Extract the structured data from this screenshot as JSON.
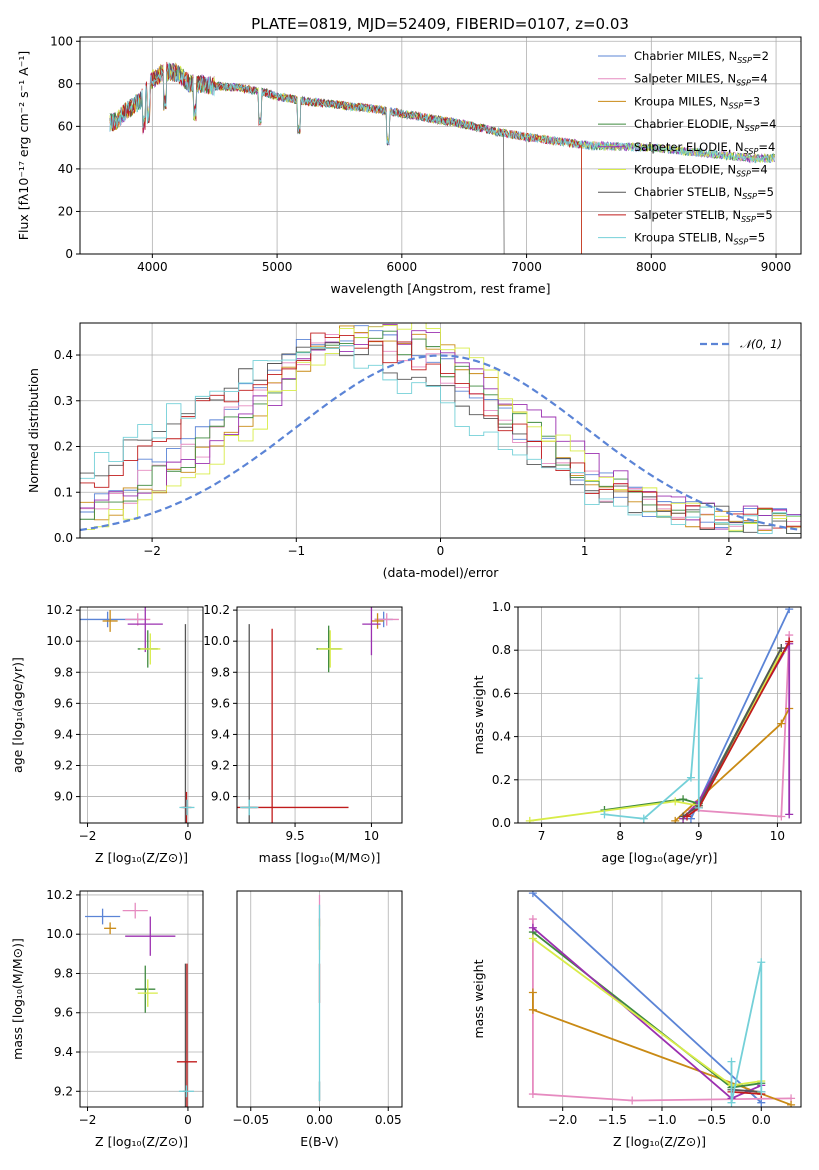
{
  "title": "PLATE=0819, MJD=52409, FIBERID=0107, z=0.03",
  "series_colors": {
    "Chabrier MILES": "#5b84d6",
    "Salpeter MILES": "#e68bc0",
    "Kroupa MILES": "#c98a14",
    "Chabrier ELODIE": "#3f8a3f",
    "Salpeter ELODIE": "#9b30b0",
    "Kroupa ELODIE": "#d8ec48",
    "Chabrier STELIB": "#555555",
    "Salpeter STELIB": "#c01c1c",
    "Kroupa STELIB": "#74d0d8"
  },
  "chart_data": [
    {
      "type": "line",
      "xlabel": "wavelength [Angstrom, rest frame]",
      "ylabel": "Flux [fλ10⁻¹⁷ erg cm⁻² s⁻¹ A⁻¹]",
      "xlim": [
        3420,
        9200
      ],
      "ylim": [
        0,
        102
      ],
      "xticks": [
        4000,
        5000,
        6000,
        7000,
        8000,
        9000
      ],
      "yticks": [
        0,
        20,
        40,
        60,
        80,
        100
      ],
      "legend_position": "top-right",
      "legend": [
        "Chabrier MILES, N_SSP=2",
        "Salpeter MILES, N_SSP=4",
        "Kroupa MILES, N_SSP=3",
        "Chabrier ELODIE, N_SSP=4",
        "Salpeter ELODIE, N_SSP=4",
        "Kroupa ELODIE, N_SSP=4",
        "Chabrier STELIB, N_SSP=5",
        "Salpeter STELIB, N_SSP=5",
        "Kroupa STELIB, N_SSP=5"
      ],
      "legend_labels": [
        {
          "name": "Chabrier MILES, N",
          "n": "2"
        },
        {
          "name": "Salpeter MILES, N",
          "n": "4"
        },
        {
          "name": "Kroupa MILES, N",
          "n": "3"
        },
        {
          "name": "Chabrier ELODIE, N",
          "n": "4"
        },
        {
          "name": "Salpeter ELODIE, N",
          "n": "4"
        },
        {
          "name": "Kroupa ELODIE, N",
          "n": "4"
        },
        {
          "name": "Chabrier STELIB, N",
          "n": "5"
        },
        {
          "name": "Salpeter STELIB, N",
          "n": "5"
        },
        {
          "name": "Kroupa STELIB, N",
          "n": "5"
        }
      ],
      "continuum": [
        [
          3700,
          62
        ],
        [
          3800,
          68
        ],
        [
          3900,
          72
        ],
        [
          4000,
          82
        ],
        [
          4100,
          86
        ],
        [
          4200,
          85
        ],
        [
          4300,
          80
        ],
        [
          4400,
          80
        ],
        [
          4500,
          79
        ],
        [
          4700,
          78
        ],
        [
          4900,
          76
        ],
        [
          5000,
          74
        ],
        [
          5200,
          72
        ],
        [
          5500,
          70
        ],
        [
          5800,
          68
        ],
        [
          6000,
          66
        ],
        [
          6300,
          63
        ],
        [
          6500,
          61
        ],
        [
          6800,
          57
        ],
        [
          7000,
          55
        ],
        [
          7500,
          51
        ],
        [
          8000,
          50
        ],
        [
          8500,
          47
        ],
        [
          8800,
          45
        ],
        [
          8900,
          45
        ]
      ],
      "series_spans": [
        [
          3660,
          8990
        ],
        [
          3660,
          8990
        ],
        [
          3660,
          7440
        ],
        [
          3660,
          8990
        ],
        [
          3660,
          8990
        ],
        [
          3660,
          8990
        ],
        [
          3660,
          6820
        ],
        [
          3660,
          7440
        ],
        [
          3660,
          8990
        ]
      ]
    },
    {
      "type": "histogram",
      "xlabel": "(data-model)/error",
      "ylabel": "Normed distribution",
      "xlim": [
        -2.5,
        2.5
      ],
      "ylim": [
        0,
        0.47
      ],
      "xticks": [
        -2,
        -1,
        0,
        1,
        2
      ],
      "yticks": [
        0.0,
        0.1,
        0.2,
        0.3,
        0.4
      ],
      "legend_position": "top-right",
      "reference_curve": {
        "name": "𝒩(0, 1)",
        "mean": 0,
        "sigma": 1,
        "style": "dashed"
      },
      "bin_width": 0.1,
      "bin_start": -2.5,
      "mean_offsets": [
        -0.55,
        -0.5,
        -0.4,
        -0.45,
        -0.35,
        -0.3,
        -0.75,
        -0.65,
        -0.85
      ],
      "spreads": [
        0.95,
        0.9,
        0.85,
        0.9,
        0.92,
        0.85,
        1.05,
        1.0,
        1.05
      ],
      "peaks": [
        0.42,
        0.4,
        0.43,
        0.41,
        0.42,
        0.44,
        0.38,
        0.4,
        0.37
      ]
    },
    {
      "type": "scatter",
      "xlabel": "Z [log₁₀(Z/Z⊙)]",
      "ylabel": "age  [log₁₀(age/yr)]",
      "xlim": [
        -2.15,
        0.3
      ],
      "ylim": [
        8.83,
        10.22
      ],
      "xticks": [
        -2,
        0
      ],
      "yticks": [
        9.0,
        9.2,
        9.4,
        9.6,
        9.8,
        10.0,
        10.2
      ],
      "points": [
        {
          "x": -1.6,
          "y": 10.14,
          "xerr": 0.7,
          "yerr": 0.05
        },
        {
          "x": -1.0,
          "y": 10.14,
          "xerr": 0.25,
          "yerr": 0.04
        },
        {
          "x": -1.55,
          "y": 10.13,
          "xerr": 0.15,
          "yerr": 0.07
        },
        {
          "x": -0.8,
          "y": 9.95,
          "xerr": 0.2,
          "yerr": 0.12
        },
        {
          "x": -0.85,
          "y": 10.11,
          "xerr": 0.35,
          "yerr": 0.18
        },
        {
          "x": -0.75,
          "y": 9.95,
          "xerr": 0.2,
          "yerr": 0.1
        },
        {
          "x": -0.05,
          "y": 8.93,
          "xerr": 0.05,
          "yerr": 1.18
        },
        {
          "x": -0.03,
          "y": 8.93,
          "xerr": 0.1,
          "yerr": 0.1
        },
        {
          "x": -0.02,
          "y": 8.93,
          "xerr": 0.15,
          "yerr": 0.05
        }
      ]
    },
    {
      "type": "scatter",
      "xlabel": "mass [log₁₀(M/M⊙)]",
      "ylabel": "",
      "xlim": [
        9.12,
        10.2
      ],
      "ylim": [
        8.83,
        10.22
      ],
      "xticks": [
        9.5,
        10.0
      ],
      "yticks": [
        9.0,
        9.2,
        9.4,
        9.6,
        9.8,
        10.0,
        10.2
      ],
      "points": [
        {
          "x": 10.08,
          "y": 10.14,
          "xerr": 0.06,
          "yerr": 0.05
        },
        {
          "x": 10.1,
          "y": 10.14,
          "xerr": 0.08,
          "yerr": 0.04
        },
        {
          "x": 10.04,
          "y": 10.13,
          "xerr": 0.04,
          "yerr": 0.05
        },
        {
          "x": 9.72,
          "y": 9.95,
          "xerr": 0.08,
          "yerr": 0.15
        },
        {
          "x": 10.0,
          "y": 10.11,
          "xerr": 0.06,
          "yerr": 0.2
        },
        {
          "x": 9.73,
          "y": 9.95,
          "xerr": 0.08,
          "yerr": 0.12
        },
        {
          "x": 9.2,
          "y": 8.93,
          "xerr": 0.05,
          "yerr": 1.18
        },
        {
          "x": 9.35,
          "y": 8.93,
          "xerr": 0.5,
          "yerr": 1.15
        },
        {
          "x": 9.2,
          "y": 8.93,
          "xerr": 0.06,
          "yerr": 0.05
        }
      ]
    },
    {
      "type": "line",
      "xlabel": "age  [log₁₀(age/yr)]",
      "ylabel": "mass weight",
      "xlim": [
        6.7,
        10.3
      ],
      "ylim": [
        0,
        1.0
      ],
      "xticks": [
        7,
        8,
        9,
        10
      ],
      "yticks": [
        0.0,
        0.2,
        0.4,
        0.6,
        0.8,
        1.0
      ],
      "series": [
        {
          "name": "Chabrier MILES",
          "points": [
            [
              8.9,
              0.02
            ],
            [
              10.15,
              0.99
            ]
          ]
        },
        {
          "name": "Salpeter MILES",
          "points": [
            [
              8.9,
              0.06
            ],
            [
              10.05,
              0.03
            ],
            [
              10.15,
              0.87
            ]
          ]
        },
        {
          "name": "Kroupa MILES",
          "points": [
            [
              8.7,
              0.01
            ],
            [
              10.05,
              0.46
            ],
            [
              10.15,
              0.53
            ]
          ]
        },
        {
          "name": "Chabrier ELODIE",
          "points": [
            [
              7.8,
              0.06
            ],
            [
              8.8,
              0.11
            ],
            [
              9.0,
              0.09
            ],
            [
              10.05,
              0.81
            ]
          ]
        },
        {
          "name": "Salpeter ELODIE",
          "points": [
            [
              8.8,
              0.02
            ],
            [
              9.0,
              0.1
            ],
            [
              10.15,
              0.83
            ],
            [
              10.15,
              0.04
            ]
          ]
        },
        {
          "name": "Kroupa ELODIE",
          "points": [
            [
              6.85,
              0.01
            ],
            [
              8.7,
              0.1
            ],
            [
              9.0,
              0.08
            ],
            [
              10.05,
              0.79
            ]
          ]
        },
        {
          "name": "Chabrier STELIB",
          "points": [
            [
              8.8,
              0.03
            ],
            [
              9.0,
              0.08
            ],
            [
              10.05,
              0.81
            ]
          ]
        },
        {
          "name": "Salpeter STELIB",
          "points": [
            [
              8.85,
              0.03
            ],
            [
              9.0,
              0.07
            ],
            [
              10.15,
              0.84
            ]
          ]
        },
        {
          "name": "Kroupa STELIB",
          "points": [
            [
              7.8,
              0.04
            ],
            [
              8.3,
              0.02
            ],
            [
              8.9,
              0.21
            ],
            [
              9.0,
              0.67
            ],
            [
              9.0,
              0.07
            ]
          ]
        }
      ]
    },
    {
      "type": "scatter",
      "xlabel": "Z [log₁₀(Z/Z⊙)]",
      "ylabel": "mass [log₁₀(M/M⊙)]",
      "xlim": [
        -2.15,
        0.3
      ],
      "ylim": [
        9.12,
        10.22
      ],
      "xticks": [
        -2,
        0
      ],
      "yticks": [
        9.2,
        9.4,
        9.6,
        9.8,
        10.0,
        10.2
      ],
      "points": [
        {
          "x": -1.7,
          "y": 10.09,
          "xerr": 0.35,
          "yerr": 0.04
        },
        {
          "x": -1.05,
          "y": 10.12,
          "xerr": 0.25,
          "yerr": 0.04
        },
        {
          "x": -1.55,
          "y": 10.03,
          "xerr": 0.12,
          "yerr": 0.03
        },
        {
          "x": -0.85,
          "y": 9.72,
          "xerr": 0.2,
          "yerr": 0.12
        },
        {
          "x": -0.75,
          "y": 9.99,
          "xerr": 0.5,
          "yerr": 0.1
        },
        {
          "x": -0.8,
          "y": 9.7,
          "xerr": 0.2,
          "yerr": 0.07
        },
        {
          "x": -0.05,
          "y": 9.2,
          "xerr": 0.05,
          "yerr": 0.65
        },
        {
          "x": -0.02,
          "y": 9.35,
          "xerr": 0.2,
          "yerr": 0.5
        },
        {
          "x": -0.03,
          "y": 9.2,
          "xerr": 0.15,
          "yerr": 0.03
        }
      ]
    },
    {
      "type": "scatter",
      "xlabel": "E(B-V)",
      "ylabel": "",
      "xlim": [
        -0.06,
        0.06
      ],
      "ylim": [
        9.12,
        10.22
      ],
      "xticks": [
        -0.05,
        0.0,
        0.05
      ],
      "tick_labels": [
        "−0.05",
        "0.00",
        "0.05"
      ],
      "points": [
        {
          "x": 0.0,
          "y": 10.12,
          "yerr": 0.08
        },
        {
          "x": 0.0,
          "y": 10.0,
          "yerr": 0.08
        },
        {
          "x": 0.0,
          "y": 9.75,
          "yerr": 0.1
        },
        {
          "x": 0.0,
          "y": 9.2,
          "yerr": 0.05
        }
      ]
    },
    {
      "type": "line",
      "xlabel": "Z [log₁₀(Z/Z⊙)]",
      "ylabel": "mass weight",
      "xlim": [
        -2.45,
        0.4
      ],
      "ylim": [
        0,
        1.0
      ],
      "xticks": [
        -2.0,
        -1.5,
        -1.0,
        -0.5,
        0.0
      ],
      "tick_labels": [
        "−2.0",
        "−1.5",
        "−1.0",
        "−0.5",
        "0.0"
      ],
      "series": [
        {
          "name": "Chabrier MILES",
          "points": [
            [
              -2.3,
              0.99
            ],
            [
              0.0,
              0.02
            ]
          ]
        },
        {
          "name": "Salpeter MILES",
          "points": [
            [
              -2.3,
              0.87
            ],
            [
              -2.3,
              0.06
            ],
            [
              -1.3,
              0.03
            ],
            [
              0.3,
              0.04
            ]
          ]
        },
        {
          "name": "Kroupa MILES",
          "points": [
            [
              -2.3,
              0.53
            ],
            [
              -2.3,
              0.45
            ],
            [
              0.3,
              0.01
            ]
          ]
        },
        {
          "name": "Chabrier ELODIE",
          "points": [
            [
              -2.3,
              0.81
            ],
            [
              -0.3,
              0.09
            ],
            [
              0.0,
              0.11
            ]
          ]
        },
        {
          "name": "Salpeter ELODIE",
          "points": [
            [
              -2.3,
              0.83
            ],
            [
              -0.3,
              0.04
            ],
            [
              0.0,
              0.1
            ]
          ]
        },
        {
          "name": "Kroupa ELODIE",
          "points": [
            [
              -2.3,
              0.78
            ],
            [
              -0.3,
              0.1
            ],
            [
              0.0,
              0.12
            ]
          ]
        },
        {
          "name": "Chabrier STELIB",
          "points": [
            [
              -0.3,
              0.08
            ],
            [
              0.0,
              0.07
            ]
          ]
        },
        {
          "name": "Salpeter STELIB",
          "points": [
            [
              -0.3,
              0.07
            ],
            [
              0.0,
              0.06
            ]
          ]
        },
        {
          "name": "Kroupa STELIB",
          "points": [
            [
              -0.3,
              0.21
            ],
            [
              -0.3,
              0.02
            ],
            [
              0.0,
              0.67
            ],
            [
              0.0,
              0.07
            ]
          ]
        }
      ]
    }
  ]
}
